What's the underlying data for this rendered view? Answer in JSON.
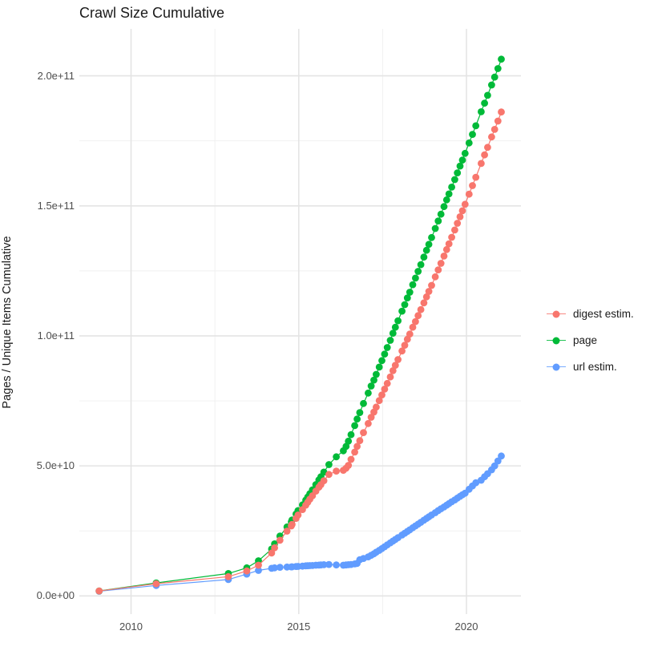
{
  "title": "Crawl Size Cumulative",
  "y_axis_title": "Pages / Unique Items Cumulative",
  "x_ticks": [
    {
      "label": "2010",
      "year": 2010
    },
    {
      "label": "2015",
      "year": 2015
    },
    {
      "label": "2020",
      "year": 2020
    }
  ],
  "y_ticks": [
    {
      "label": "0.0e+00",
      "value": 0
    },
    {
      "label": "5.0e+10",
      "value": 50
    },
    {
      "label": "1.0e+11",
      "value": 100
    },
    {
      "label": "1.5e+11",
      "value": 150
    },
    {
      "label": "2.0e+11",
      "value": 200
    }
  ],
  "legend": {
    "items": [
      {
        "label": "digest estim.",
        "color": "#F8766D",
        "series": "digest"
      },
      {
        "label": "page",
        "color": "#00BA38",
        "series": "page"
      },
      {
        "label": "url estim.",
        "color": "#619CFF",
        "series": "url"
      }
    ]
  },
  "colors": {
    "digest": "#F8766D",
    "page": "#00BA38",
    "url": "#619CFF",
    "grid_major": "#e4e4e4",
    "grid_minor": "#efefef",
    "tick_text": "#4d4d4d",
    "title_text": "#1a1a1a"
  },
  "chart_data": {
    "type": "scatter",
    "title": "Crawl Size Cumulative",
    "xlabel": "",
    "ylabel": "Pages / Unique Items Cumulative",
    "value_unit": "1e9 (values below are billions; e.g. 206.4 = 2.064e11)",
    "x_unit": "decimal year (one point per crawl)",
    "xlim": [
      2008.45,
      2021.65
    ],
    "ylim_e9": [
      -10,
      218
    ],
    "grid": "major and minor, light gray on white",
    "legend_position": "right",
    "x_major_ticks": [
      2010,
      2015,
      2020
    ],
    "x_minor_ticks": [
      2012.5,
      2017.5
    ],
    "y_major_ticks_e9": [
      0,
      50,
      100,
      150,
      200
    ],
    "y_minor_ticks_e9": [
      25,
      75,
      125,
      175
    ],
    "x": [
      2009.05,
      2010.75,
      2012.9,
      2013.45,
      2013.8,
      2014.19,
      2014.28,
      2014.44,
      2014.65,
      2014.78,
      2014.8,
      2014.92,
      2014.98,
      2015.11,
      2015.21,
      2015.27,
      2015.33,
      2015.41,
      2015.51,
      2015.6,
      2015.66,
      2015.75,
      2015.9,
      2016.12,
      2016.33,
      2016.41,
      2016.48,
      2016.56,
      2016.67,
      2016.74,
      2016.82,
      2016.93,
      2017.07,
      2017.16,
      2017.24,
      2017.31,
      2017.4,
      2017.48,
      2017.56,
      2017.64,
      2017.73,
      2017.81,
      2017.88,
      2017.96,
      2018.08,
      2018.16,
      2018.24,
      2018.31,
      2018.4,
      2018.48,
      2018.56,
      2018.64,
      2018.73,
      2018.81,
      2018.88,
      2018.96,
      2019.07,
      2019.16,
      2019.24,
      2019.33,
      2019.41,
      2019.48,
      2019.56,
      2019.65,
      2019.73,
      2019.81,
      2019.88,
      2019.96,
      2020.08,
      2020.18,
      2020.28,
      2020.44,
      2020.54,
      2020.63,
      2020.75,
      2020.84,
      2020.94,
      2021.04
    ],
    "series": [
      {
        "name": "digest estim.",
        "color": "#F8766D",
        "values": [
          1.9,
          4.7,
          7.4,
          9.6,
          11.8,
          16.5,
          18.5,
          21.4,
          24.9,
          26.9,
          27.5,
          29.8,
          31.1,
          33.2,
          34.9,
          36,
          37.2,
          38.5,
          40.3,
          41.8,
          42.8,
          44.3,
          46.7,
          48,
          48.3,
          49.1,
          50.2,
          52.5,
          55.3,
          57.5,
          59.7,
          62.8,
          66.3,
          68.7,
          70.7,
          72.6,
          75.1,
          77.3,
          79.5,
          81.7,
          84.2,
          86.6,
          88.7,
          90.9,
          94.2,
          96.4,
          98.7,
          100.7,
          103.3,
          105.5,
          107.8,
          110.1,
          112.7,
          115,
          117.1,
          119.4,
          122.7,
          125.4,
          127.9,
          130.7,
          133.2,
          135.4,
          137.9,
          140.7,
          143.3,
          145.8,
          148.1,
          150.6,
          154.5,
          157.8,
          161,
          166.3,
          169.6,
          172.5,
          176.5,
          179.4,
          182.6,
          186.1
        ]
      },
      {
        "name": "page",
        "color": "#00BA38",
        "values": [
          1.9,
          5.0,
          8.6,
          10.8,
          13.5,
          18,
          20,
          23,
          26.5,
          28.5,
          29.2,
          31.5,
          32.8,
          35,
          36.8,
          38,
          39.3,
          40.8,
          42.8,
          44.6,
          45.8,
          47.6,
          50.5,
          53.5,
          55.8,
          57.5,
          59.5,
          62,
          65.5,
          68,
          70.5,
          74,
          78,
          80.7,
          83,
          85.2,
          88,
          90.5,
          93,
          95.5,
          98.3,
          101,
          103.3,
          105.8,
          109.5,
          112,
          114.6,
          116.8,
          119.7,
          122.2,
          124.8,
          127.4,
          130.3,
          132.9,
          135.2,
          137.8,
          141.3,
          144.2,
          146.8,
          149.7,
          152.3,
          154.6,
          157.2,
          160.1,
          162.7,
          165.3,
          167.6,
          170.2,
          174.2,
          177.5,
          180.8,
          186.2,
          189.5,
          192.5,
          196.5,
          199.5,
          202.8,
          206.4
        ]
      },
      {
        "name": "url estim.",
        "color": "#619CFF",
        "values": [
          1.8,
          4.0,
          6.3,
          8.4,
          9.8,
          10.6,
          10.8,
          11.0,
          11.1,
          11.15,
          11.2,
          11.3,
          11.35,
          11.45,
          11.55,
          11.6,
          11.65,
          11.7,
          11.8,
          11.85,
          11.9,
          12.0,
          12.1,
          11.9,
          11.8,
          11.9,
          12.0,
          12.1,
          12.3,
          12.5,
          13.9,
          14.4,
          15.0,
          15.6,
          16.2,
          16.8,
          17.5,
          18.2,
          18.9,
          19.6,
          20.4,
          21.1,
          21.7,
          22.4,
          23.4,
          24.1,
          24.8,
          25.4,
          26.2,
          26.9,
          27.6,
          28.3,
          29.1,
          29.8,
          30.4,
          31.1,
          32.0,
          32.8,
          33.5,
          34.2,
          34.9,
          35.5,
          36.2,
          36.9,
          37.6,
          38.3,
          38.9,
          39.5,
          41.0,
          42.3,
          43.5,
          44.5,
          45.8,
          47.0,
          48.5,
          50.0,
          51.9,
          53.8
        ]
      }
    ]
  }
}
